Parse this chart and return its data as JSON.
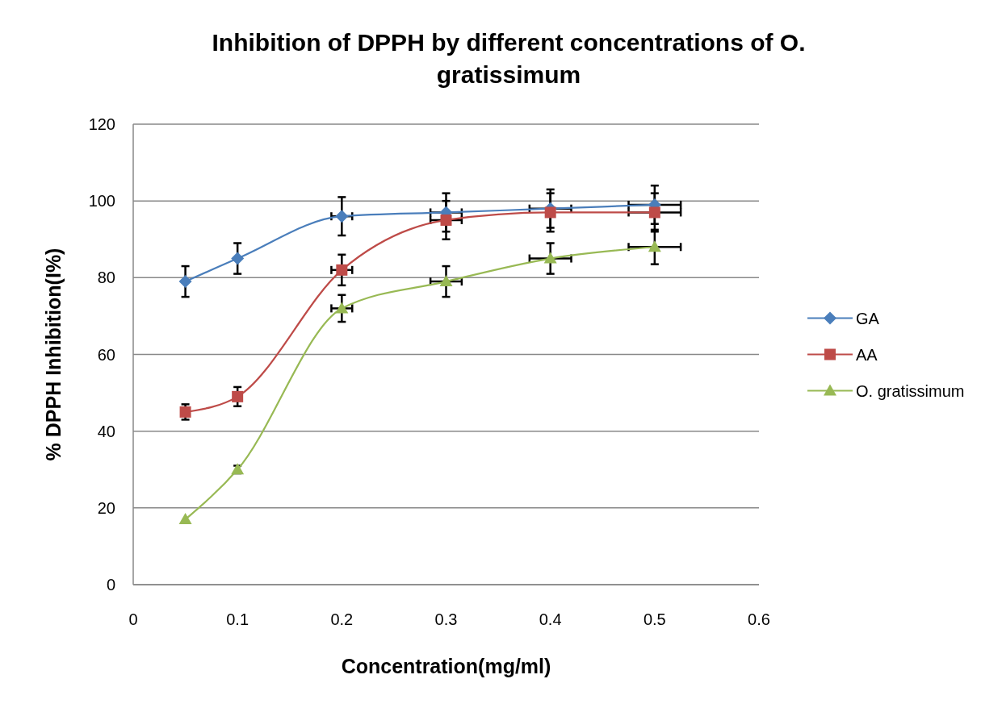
{
  "chart_data": {
    "type": "line",
    "title": "Inhibition of DPPH by different concentrations of O. gratissimum",
    "xlabel": "Concentration(mg/ml)",
    "ylabel": "% DPPH Inhibition(I%)",
    "x": [
      0.05,
      0.1,
      0.2,
      0.3,
      0.4,
      0.5
    ],
    "series": [
      {
        "name": "GA",
        "color": "#4a7ebb",
        "marker": "diamond",
        "values": [
          79,
          85,
          96,
          97,
          98,
          99
        ],
        "errors": [
          4,
          4,
          5,
          5,
          5,
          5
        ],
        "xerrors": [
          null,
          null,
          0.01,
          0.015,
          0.02,
          0.025
        ]
      },
      {
        "name": "AA",
        "color": "#be4b48",
        "marker": "square",
        "values": [
          45,
          49,
          82,
          95,
          97,
          97
        ],
        "errors": [
          2,
          2.5,
          4,
          5,
          5,
          5
        ],
        "xerrors": [
          null,
          null,
          0.01,
          0.015,
          null,
          0.025
        ]
      },
      {
        "name": "O. gratissimum",
        "color": "#98b954",
        "marker": "triangle",
        "values": [
          17,
          30,
          72,
          79,
          85,
          88
        ],
        "errors": [
          null,
          1,
          3.5,
          4,
          4,
          4.5
        ],
        "xerrors": [
          null,
          null,
          0.01,
          0.015,
          0.02,
          0.025
        ]
      }
    ],
    "xlim": [
      0,
      0.6
    ],
    "xticks": [
      0,
      0.1,
      0.2,
      0.3,
      0.4,
      0.5,
      0.6
    ],
    "ylim": [
      0,
      120
    ],
    "yticks": [
      0,
      20,
      40,
      60,
      80,
      100,
      120
    ],
    "grid": "y",
    "legend": "right"
  }
}
